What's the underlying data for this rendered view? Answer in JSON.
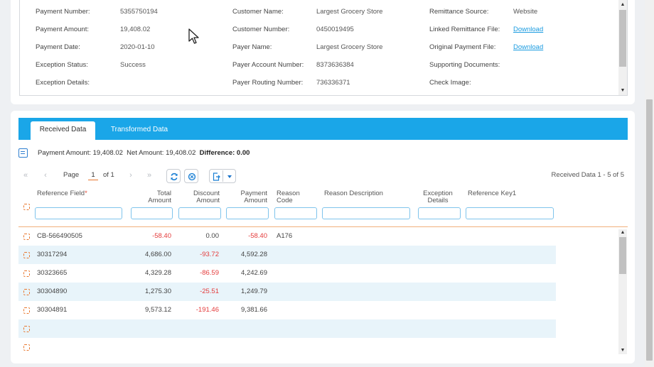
{
  "payment_info": {
    "col1": [
      {
        "label": "Payment Number:",
        "value": "5355750194"
      },
      {
        "label": "Payment Amount:",
        "value": "19,408.02"
      },
      {
        "label": "Payment Date:",
        "value": "2020-01-10"
      },
      {
        "label": "Exception Status:",
        "value": "Success"
      },
      {
        "label": "Exception Details:",
        "value": ""
      }
    ],
    "col2": [
      {
        "label": "Customer Name:",
        "value": "Largest Grocery Store"
      },
      {
        "label": "Customer Number:",
        "value": "0450019495"
      },
      {
        "label": "Payer Name:",
        "value": "Largest Grocery Store"
      },
      {
        "label": "Payer Account Number:",
        "value": "8373636384"
      },
      {
        "label": "Payer Routing Number:",
        "value": "736336371"
      }
    ],
    "col3": [
      {
        "label": "Remittance Source:",
        "value": "Website"
      },
      {
        "label": "Linked Remittance File:",
        "value": "Download"
      },
      {
        "label": "Original Payment File:",
        "value": "Download"
      },
      {
        "label": "Supporting Documents:",
        "value": ""
      },
      {
        "label": "Check Image:",
        "value": ""
      }
    ]
  },
  "tabs": [
    "Received Data",
    "Transformed Data"
  ],
  "summary": {
    "payment_amount": "Payment Amount: 19,408.02",
    "net_amount": "Net Amount: 19,408.02",
    "difference": "Difference: 0.00"
  },
  "pager": {
    "page_label": "Page",
    "current_page": "1",
    "of_label": "of 1",
    "count_text": "Received Data 1 - 5 of 5"
  },
  "columns": {
    "reference_field": "Reference Field",
    "required_mark": "*",
    "total_amount_1": "Total",
    "total_amount_2": "Amount",
    "discount_amount_1": "Discount",
    "discount_amount_2": "Amount",
    "payment_amount_1": "Payment",
    "payment_amount_2": "Amount",
    "reason_code_1": "Reason",
    "reason_code_2": "Code",
    "reason_description": "Reason Description",
    "exception_details_1": "Exception",
    "exception_details_2": "Details",
    "reference_key": "Reference Key1"
  },
  "rows": [
    {
      "ref": "CB-566490505",
      "total": "-58.40",
      "discount": "0.00",
      "payment": "-58.40",
      "reason_code": "A176"
    },
    {
      "ref": "30317294",
      "total": "4,686.00",
      "discount": "-93.72",
      "payment": "4,592.28",
      "reason_code": ""
    },
    {
      "ref": "30323665",
      "total": "4,329.28",
      "discount": "-86.59",
      "payment": "4,242.69",
      "reason_code": ""
    },
    {
      "ref": "30304890",
      "total": "1,275.30",
      "discount": "-25.51",
      "payment": "1,249.79",
      "reason_code": ""
    },
    {
      "ref": "30304891",
      "total": "9,573.12",
      "discount": "-191.46",
      "payment": "9,381.66",
      "reason_code": ""
    },
    {
      "ref": "",
      "total": "",
      "discount": "",
      "payment": "",
      "reason_code": ""
    },
    {
      "ref": "",
      "total": "",
      "discount": "",
      "payment": "",
      "reason_code": ""
    }
  ],
  "colors": {
    "accent": "#1aa6e8",
    "negative": "#e43b3b",
    "link": "#1a9be0",
    "row_alt": "#e8f4fa"
  },
  "icons": [
    "first-page-icon",
    "prev-page-icon",
    "next-page-icon",
    "last-page-icon",
    "refresh-icon",
    "reset-icon",
    "export-icon",
    "summary-icon",
    "row-select-icon"
  ]
}
